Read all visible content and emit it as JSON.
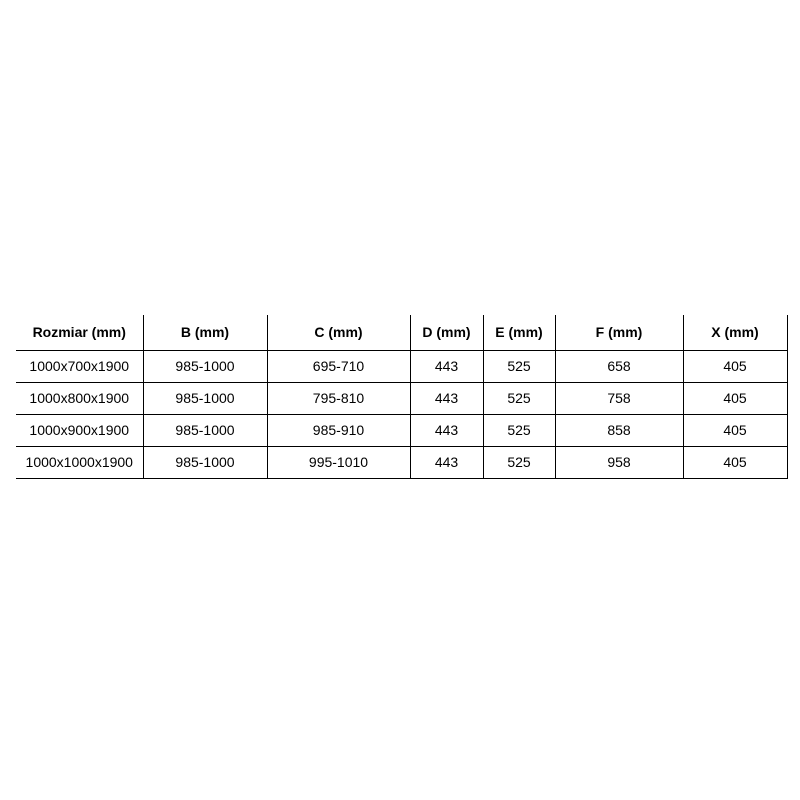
{
  "page": {
    "background_color": "#ffffff",
    "text_color": "#000000",
    "border_color": "#000000"
  },
  "chart_data": {
    "type": "table",
    "title": "",
    "columns": [
      "Rozmiar (mm)",
      "B (mm)",
      "C (mm)",
      "D (mm)",
      "E (mm)",
      "F (mm)",
      "X (mm)"
    ],
    "rows": [
      [
        "1000x700x1900",
        "985-1000",
        "695-710",
        "443",
        "525",
        "658",
        "405"
      ],
      [
        "1000x800x1900",
        "985-1000",
        "795-810",
        "443",
        "525",
        "758",
        "405"
      ],
      [
        "1000x900x1900",
        "985-1000",
        "985-910",
        "443",
        "525",
        "858",
        "405"
      ],
      [
        "1000x1000x1900",
        "985-1000",
        "995-1010",
        "443",
        "525",
        "958",
        "405"
      ]
    ],
    "layout_hints": {
      "header_bold": true,
      "grid": "all horizontal rules + inner vertical rules + right outer rule; no left/top outer rule",
      "cell_alignment": "center"
    }
  }
}
